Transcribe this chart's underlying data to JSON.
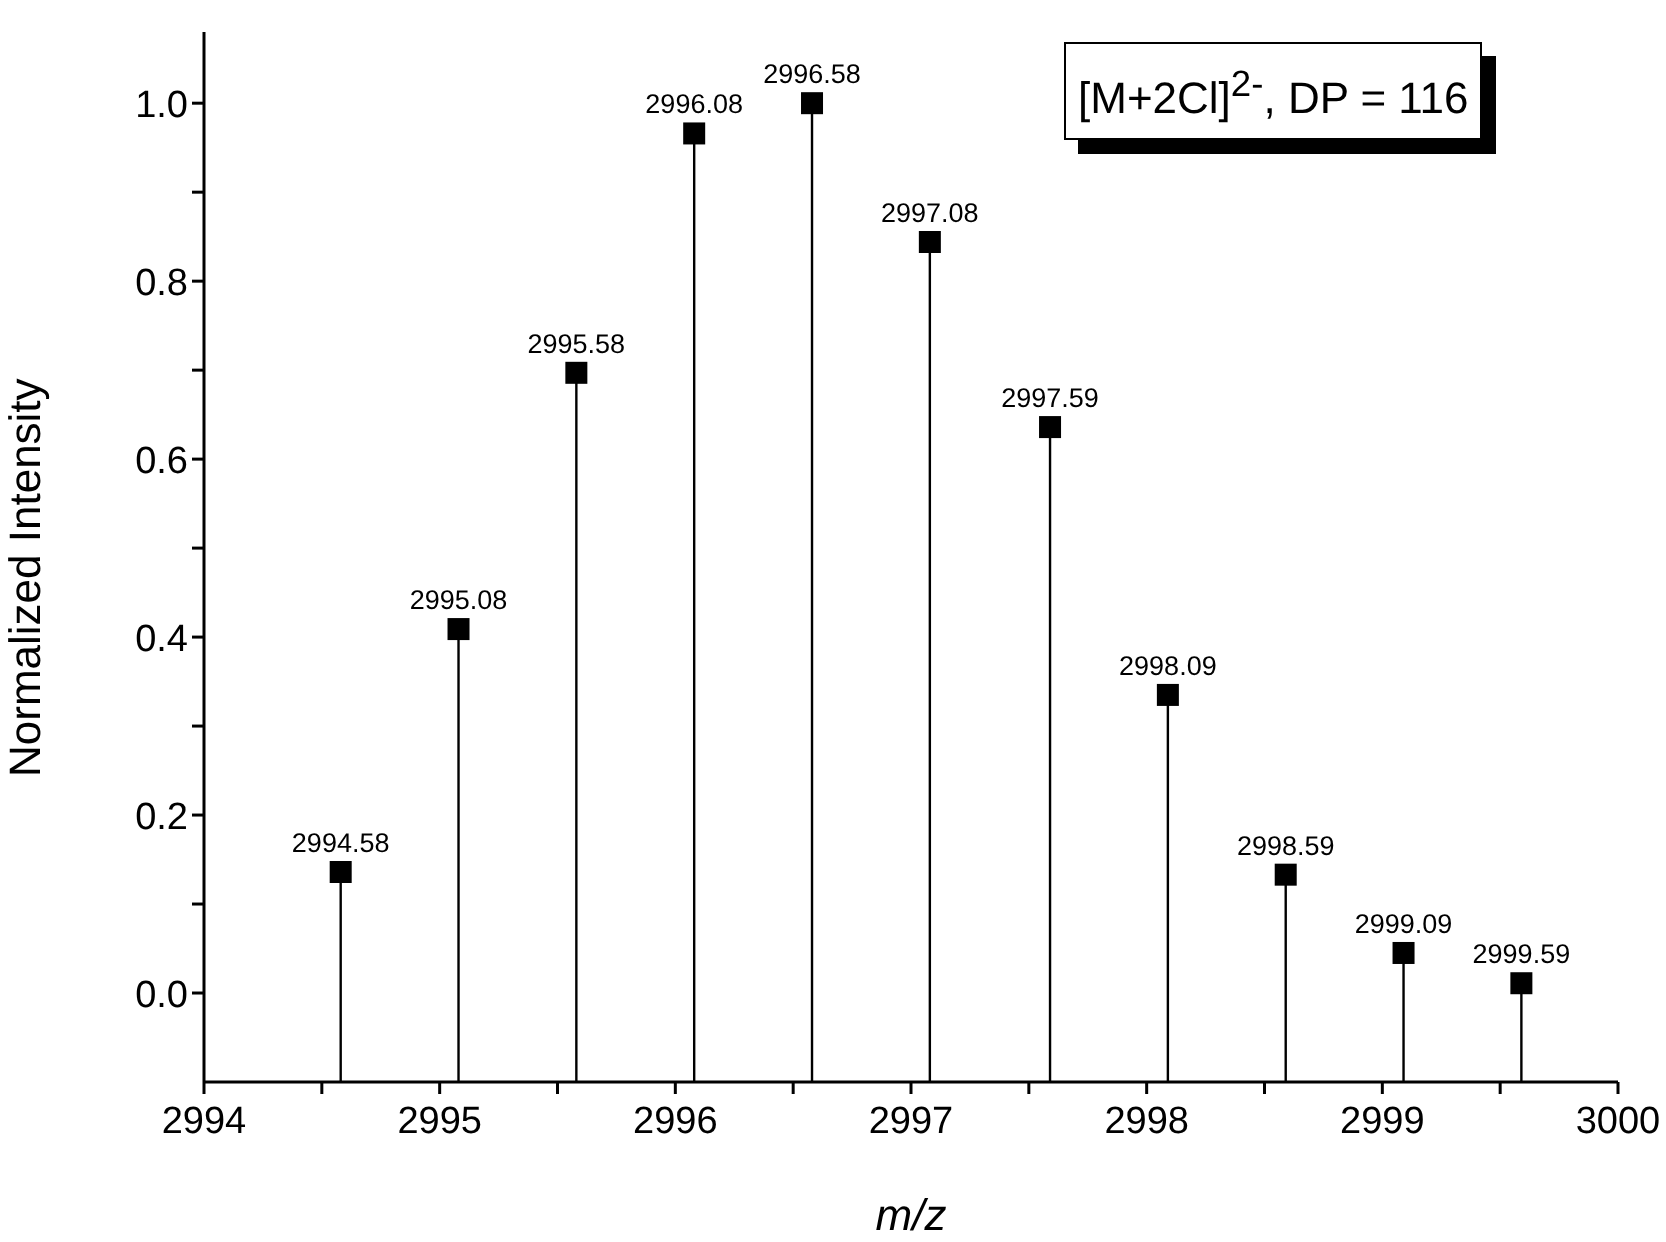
{
  "chart_data": {
    "type": "lollipop",
    "xlabel": "m/z",
    "ylabel": "Normalized Intensity",
    "annotations": [
      "[M+2Cl]$^{2-}$, DP = 116",
      {
        "text": "2994.58",
        "x": 2994.58,
        "y": 0.136
      },
      {
        "text": "2995.08",
        "x": 2995.08,
        "y": 0.409
      },
      {
        "text": "2995.58",
        "x": 2995.58,
        "y": 0.697
      },
      {
        "text": "2996.08",
        "x": 2996.08,
        "y": 0.966
      },
      {
        "text": "2996.58",
        "x": 2996.58,
        "y": 1.0
      },
      {
        "text": "2997.08",
        "x": 2997.08,
        "y": 0.844
      },
      {
        "text": "2997.59",
        "x": 2997.59,
        "y": 0.636
      },
      {
        "text": "2998.09",
        "x": 2998.09,
        "y": 0.335
      },
      {
        "text": "2998.59",
        "x": 2998.59,
        "y": 0.133
      },
      {
        "text": "2999.09",
        "x": 2999.09,
        "y": 0.045
      },
      {
        "text": "2999.59",
        "x": 2999.59,
        "y": 0.011
      }
    ],
    "x": [
      2994.58,
      2995.08,
      2995.58,
      2996.08,
      2996.58,
      2997.08,
      2997.59,
      2998.09,
      2998.59,
      2999.09,
      2999.59
    ],
    "values": [
      0.136,
      0.409,
      0.697,
      0.966,
      1.0,
      0.844,
      0.636,
      0.335,
      0.133,
      0.045,
      0.011
    ],
    "color": "#000000",
    "marker": "square",
    "xlim": [
      2994,
      3000
    ],
    "xticks": [
      2994,
      {
        "value": 2994.5,
        "label": null
      },
      2995,
      {
        "value": 2995.5,
        "label": null
      },
      2996,
      {
        "value": 2996.5,
        "label": null
      },
      2997,
      {
        "value": 2997.5,
        "label": null
      },
      2998,
      {
        "value": 2998.5,
        "label": null
      },
      2999,
      {
        "value": 2999.5,
        "label": null
      },
      3000
    ],
    "ylim": [
      -0.1,
      1.08
    ],
    "yticks": [
      {
        "value": 0.0,
        "label": "0.0"
      },
      {
        "value": 0.1,
        "label": null
      },
      {
        "value": 0.2,
        "label": "0.2"
      },
      {
        "value": 0.3,
        "label": null
      },
      {
        "value": 0.4,
        "label": "0.4"
      },
      {
        "value": 0.5,
        "label": null
      },
      {
        "value": 0.6,
        "label": "0.6"
      },
      {
        "value": 0.7,
        "label": null
      },
      {
        "value": 0.8,
        "label": "0.8"
      },
      {
        "value": 0.9,
        "label": null
      },
      {
        "value": 1.0,
        "label": "1.0"
      }
    ],
    "grid": false,
    "legend": false
  }
}
